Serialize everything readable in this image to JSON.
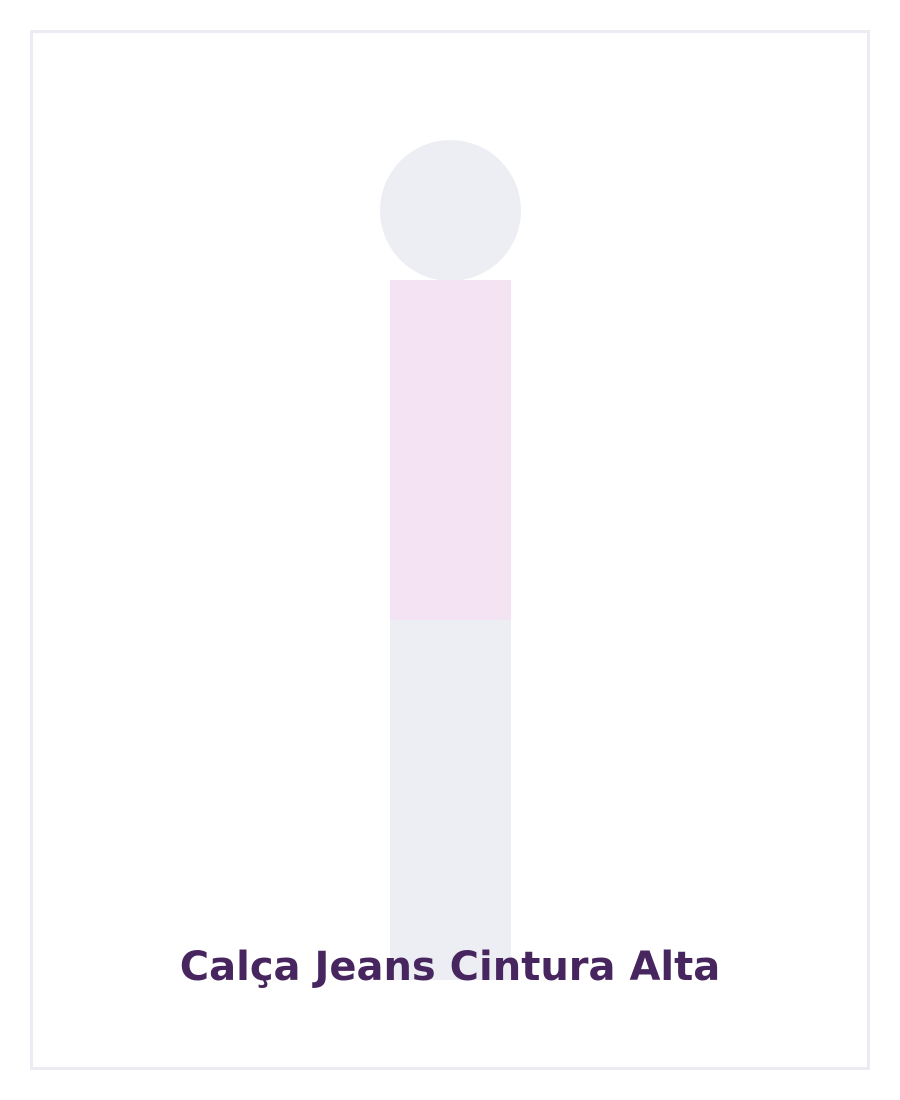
{
  "product": {
    "title": "Calça Jeans Cintura Alta"
  },
  "placeholder_figure": {
    "head_color": "#edeef3",
    "torso_color": "#f3e3f3",
    "legs_color": "#edeef3"
  },
  "colors": {
    "frame_border": "#ecebf3",
    "title_text": "#47265f",
    "background": "#ffffff"
  }
}
